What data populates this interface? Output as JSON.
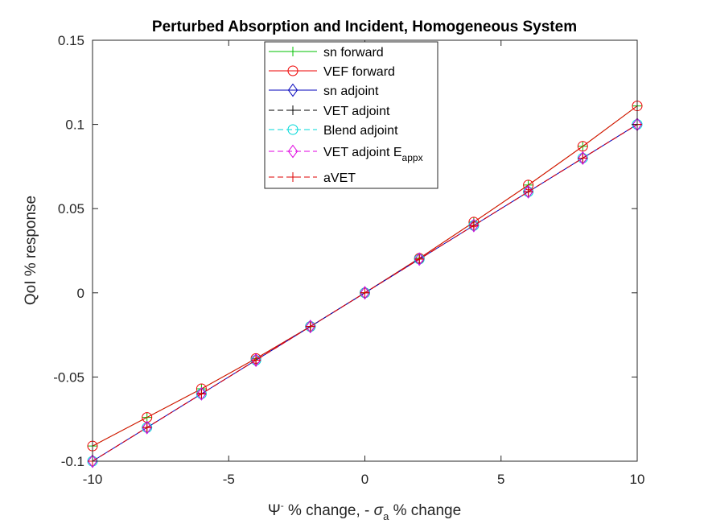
{
  "chart_data": {
    "type": "line",
    "title": "Perturbed Absorption and Incident, Homogeneous System",
    "xlabel": {
      "parts": [
        "Ψ",
        "-",
        " % change, - ",
        "σ",
        "a",
        " % change"
      ]
    },
    "ylabel": "QoI % response",
    "xlim": [
      -10,
      10
    ],
    "ylim": [
      -0.1,
      0.15
    ],
    "xticks": [
      -10,
      -5,
      0,
      5,
      10
    ],
    "xtick_labels": [
      "-10",
      "-5",
      "0",
      "5",
      "10"
    ],
    "yticks": [
      -0.1,
      -0.05,
      0,
      0.05,
      0.1,
      0.15
    ],
    "ytick_labels": [
      "-0.1",
      "-0.05",
      "0",
      "0.05",
      "0.1",
      "0.15"
    ],
    "grid": false,
    "legend_position": "top-center",
    "x": [
      -10,
      -8,
      -6,
      -4,
      -2,
      0,
      2,
      4,
      6,
      8,
      10
    ],
    "series": [
      {
        "name": "sn forward",
        "color": "#00c000",
        "line": "solid",
        "marker": "plus",
        "values": [
          -0.091,
          -0.074,
          -0.057,
          -0.039,
          -0.02,
          0,
          0.0205,
          0.042,
          0.064,
          0.087,
          0.111
        ]
      },
      {
        "name": "VEF forward",
        "color": "#ee0000",
        "line": "solid",
        "marker": "circle",
        "values": [
          -0.091,
          -0.074,
          -0.057,
          -0.039,
          -0.02,
          0,
          0.0205,
          0.042,
          0.064,
          0.087,
          0.111
        ]
      },
      {
        "name": "sn adjoint",
        "color": "#0000bb",
        "line": "solid",
        "marker": "diamond",
        "values": [
          -0.1,
          -0.08,
          -0.06,
          -0.04,
          -0.02,
          0,
          0.02,
          0.04,
          0.06,
          0.08,
          0.1
        ]
      },
      {
        "name": "VET adjoint",
        "color": "#000000",
        "line": "dashed",
        "marker": "plus",
        "values": [
          -0.1,
          -0.08,
          -0.06,
          -0.04,
          -0.02,
          0,
          0.02,
          0.04,
          0.06,
          0.08,
          0.1
        ]
      },
      {
        "name": "Blend adjoint",
        "color": "#00d8d8",
        "line": "dashed",
        "marker": "circle",
        "values": [
          -0.1,
          -0.08,
          -0.06,
          -0.04,
          -0.02,
          0,
          0.02,
          0.04,
          0.06,
          0.08,
          0.1
        ]
      },
      {
        "name": "VET adjoint E",
        "name_subscript": "appx",
        "color": "#e000e0",
        "line": "dashed",
        "marker": "diamond",
        "values": [
          -0.1,
          -0.08,
          -0.06,
          -0.04,
          -0.02,
          0,
          0.02,
          0.04,
          0.06,
          0.08,
          0.1
        ]
      },
      {
        "name": "aVET",
        "color": "#dd0000",
        "line": "dashed",
        "marker": "plus",
        "values": [
          -0.1,
          -0.08,
          -0.06,
          -0.04,
          -0.02,
          0,
          0.02,
          0.04,
          0.06,
          0.08,
          0.1
        ]
      }
    ]
  }
}
